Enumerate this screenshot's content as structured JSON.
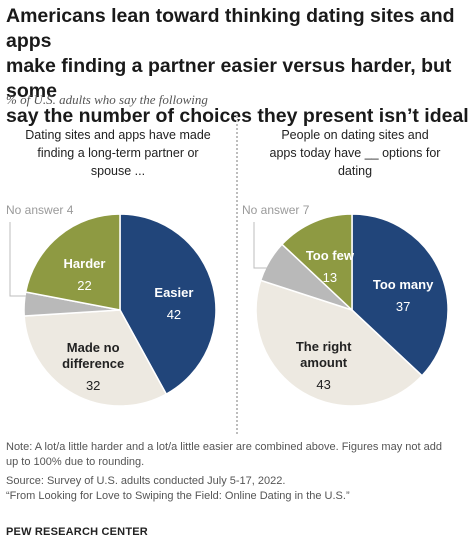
{
  "header": {
    "title_lines": [
      "Americans lean toward thinking dating sites and apps",
      "make finding a partner easier versus harder, but some",
      "say the number of choices they present isn’t ideal"
    ],
    "subtitle": "% of U.S. adults who say the following"
  },
  "colors": {
    "navy": "#21457a",
    "olive": "#8e9a42",
    "gray": "#b9b9b9",
    "cream": "#ede9e1"
  },
  "chart_data": [
    {
      "type": "pie",
      "title_lines": [
        "Dating sites and apps have made",
        "finding a long-term partner or",
        "spouse ..."
      ],
      "slices": [
        {
          "label_lines": [
            "Easier"
          ],
          "value": 42,
          "color": "#21457a",
          "label_color": "#ffffff"
        },
        {
          "label_lines": [
            "Made no",
            "difference"
          ],
          "value": 32,
          "color": "#ede9e1",
          "label_color": "#222222"
        },
        {
          "label": "No answer",
          "value": 4,
          "color": "#b9b9b9",
          "outside": true
        },
        {
          "label_lines": [
            "Harder"
          ],
          "value": 22,
          "color": "#8e9a42",
          "label_color": "#ffffff"
        }
      ]
    },
    {
      "type": "pie",
      "title_lines": [
        "People on dating sites and",
        "apps today have __ options for",
        "dating"
      ],
      "slices": [
        {
          "label_lines": [
            "Too many"
          ],
          "value": 37,
          "color": "#21457a",
          "label_color": "#ffffff"
        },
        {
          "label_lines": [
            "The right",
            "amount"
          ],
          "value": 43,
          "color": "#ede9e1",
          "label_color": "#222222"
        },
        {
          "label": "No answer",
          "value": 7,
          "color": "#b9b9b9",
          "outside": true
        },
        {
          "label_lines": [
            "Too few"
          ],
          "value": 13,
          "color": "#8e9a42",
          "label_color": "#ffffff"
        }
      ]
    }
  ],
  "footer": {
    "note_lines": [
      "Note: A lot/a little harder and a lot/a little easier are combined above. Figures may not add",
      "up to 100% due to rounding."
    ],
    "source": "Source: Survey of U.S. adults conducted July 5-17, 2022.",
    "report": "“From Looking for Love to Swiping the Field: Online Dating in the U.S.”",
    "org": "PEW RESEARCH CENTER"
  }
}
